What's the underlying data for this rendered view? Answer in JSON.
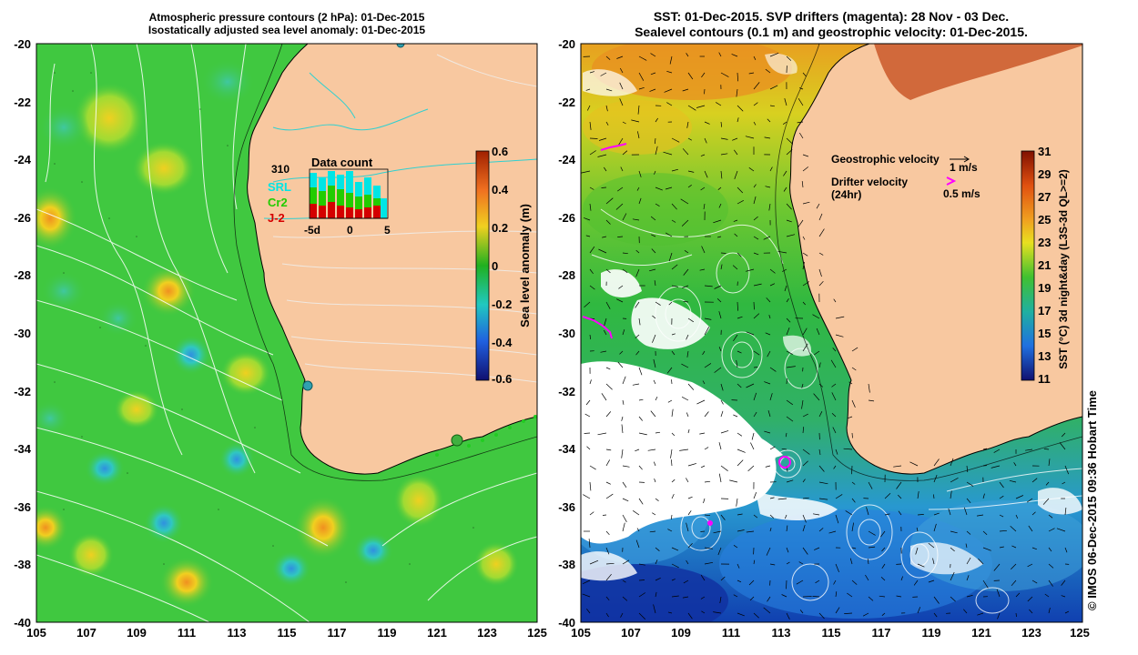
{
  "left_panel": {
    "title_lines": [
      "Atmospheric pressure contours (2 hPa): 01-Dec-2015",
      "Isostatically adjusted sea level anomaly: 01-Dec-2015"
    ],
    "x_ticks": [
      "105",
      "107",
      "109",
      "111",
      "113",
      "115",
      "117",
      "119",
      "121",
      "123",
      "125"
    ],
    "y_ticks": [
      "-20",
      "-22",
      "-24",
      "-26",
      "-28",
      "-30",
      "-32",
      "-34",
      "-36",
      "-38",
      "-40"
    ],
    "colorbar": {
      "label": "Sea level anomaly (m)",
      "ticks": [
        "0.6",
        "0.4",
        "0.2",
        "0",
        "-0.2",
        "-0.4",
        "-0.6"
      ],
      "range": [
        -0.6,
        0.6
      ]
    },
    "data_count": {
      "title": "Data count",
      "max_label": "310",
      "legend": [
        "SRL",
        "Cr2",
        "J-2"
      ],
      "legend_colors": [
        "#00e5e5",
        "#22cc00",
        "#d40000"
      ],
      "x_ticks": [
        "-5d",
        "0",
        "5"
      ]
    }
  },
  "right_panel": {
    "title_lines": [
      "SST: 01-Dec-2015. SVP drifters (magenta): 28 Nov - 03 Dec.",
      "Sealevel contours (0.1 m) and geostrophic velocity: 01-Dec-2015."
    ],
    "x_ticks": [
      "105",
      "107",
      "109",
      "111",
      "113",
      "115",
      "117",
      "119",
      "121",
      "123",
      "125"
    ],
    "y_ticks": [
      "-20",
      "-22",
      "-24",
      "-26",
      "-28",
      "-30",
      "-32",
      "-34",
      "-36",
      "-38",
      "-40"
    ],
    "colorbar": {
      "label": "SST (°C) 3d night&day (L3S-3d QL>=2)",
      "ticks": [
        "31",
        "29",
        "27",
        "25",
        "23",
        "21",
        "19",
        "17",
        "15",
        "13",
        "11"
      ],
      "range": [
        11,
        31
      ]
    },
    "legend": {
      "geo_label": "Geostrophic velocity",
      "geo_scale": "1 m/s",
      "drifter_label": "Drifter velocity",
      "drifter_sub": "(24hr)",
      "drifter_scale": "0.5 m/s"
    }
  },
  "footer": {
    "stamp": "© IMOS 06-Dec-2015 09:36 Hobart Time"
  },
  "colors": {
    "land": "#f8c8a0",
    "ocean_green": "#3cc43c",
    "drifter": "#ff00ff"
  }
}
